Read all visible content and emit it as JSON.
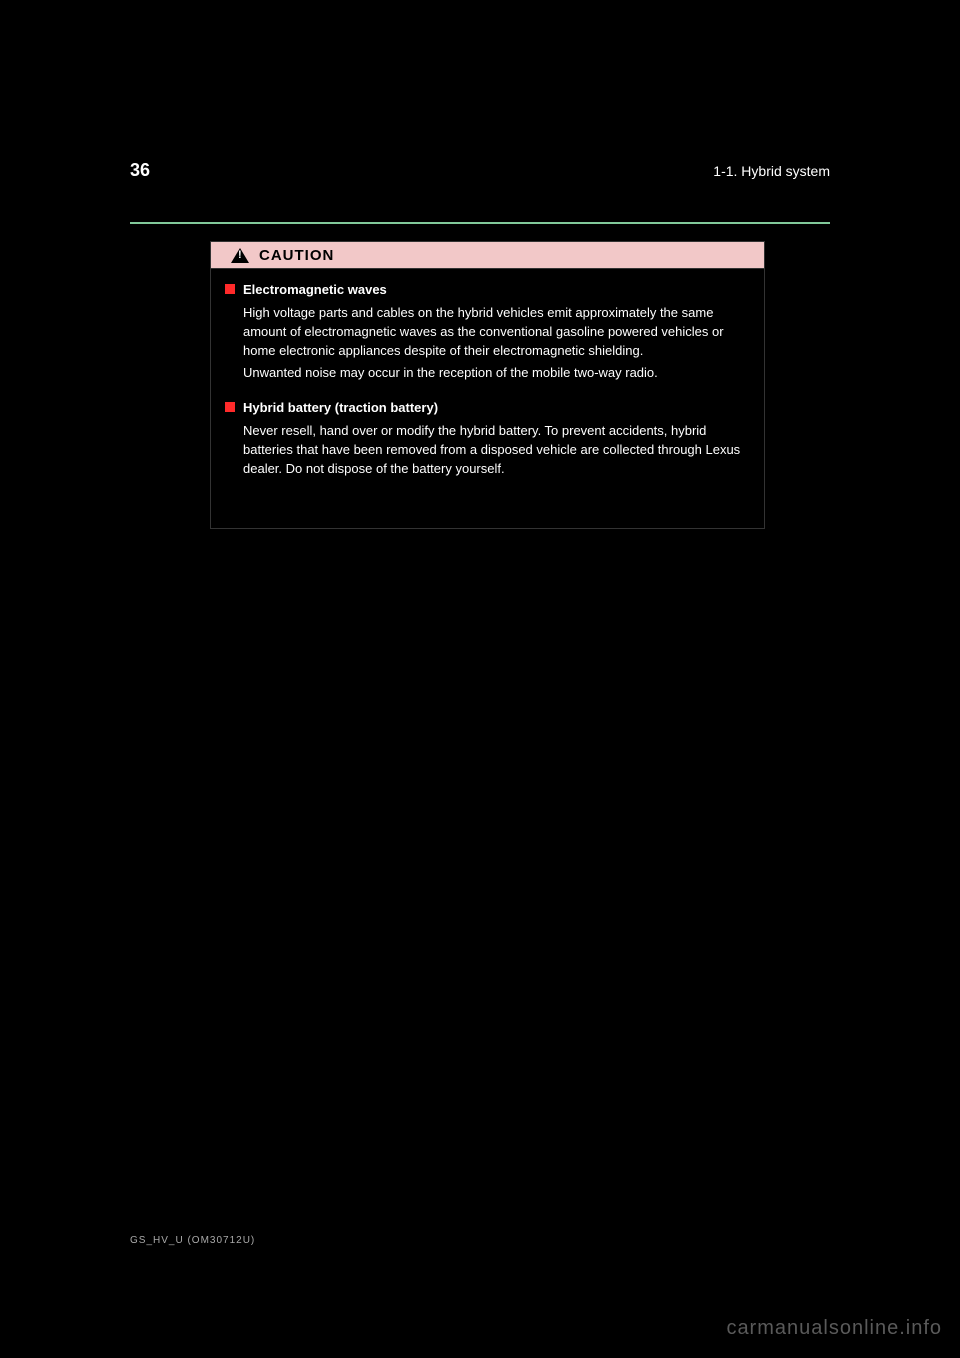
{
  "header": {
    "page_number": "36",
    "section_path": "1-1. Hybrid system"
  },
  "divider": {
    "color": "#81c99a"
  },
  "caution": {
    "label": "CAUTION",
    "header_bg": "#f2c8c8",
    "icon_color": "#000000",
    "bullets": [
      {
        "title": "Electromagnetic waves",
        "paragraphs": [
          "High voltage parts and cables on the hybrid vehicles emit approximately the same amount of electromagnetic waves as the conventional gasoline powered vehicles or home electronic appliances despite of their electromagnetic shielding.",
          "Unwanted noise may occur in the reception of the mobile two-way radio."
        ]
      },
      {
        "title": "Hybrid battery (traction battery)",
        "paragraphs": [
          "Never resell, hand over or modify the hybrid battery. To prevent accidents, hybrid batteries that have been removed from a disposed vehicle are collected through Lexus dealer. Do not dispose of the battery yourself."
        ]
      }
    ]
  },
  "footer": {
    "manual_id": "GS_HV_U (OM30712U)",
    "watermark": "carmanualsonline.info"
  },
  "colors": {
    "page_bg": "#000000",
    "page_text": "#ffffff",
    "bullet_square": "#ff2a2a",
    "watermark": "#5a5a5a",
    "manual_id": "#aaaaaa"
  }
}
